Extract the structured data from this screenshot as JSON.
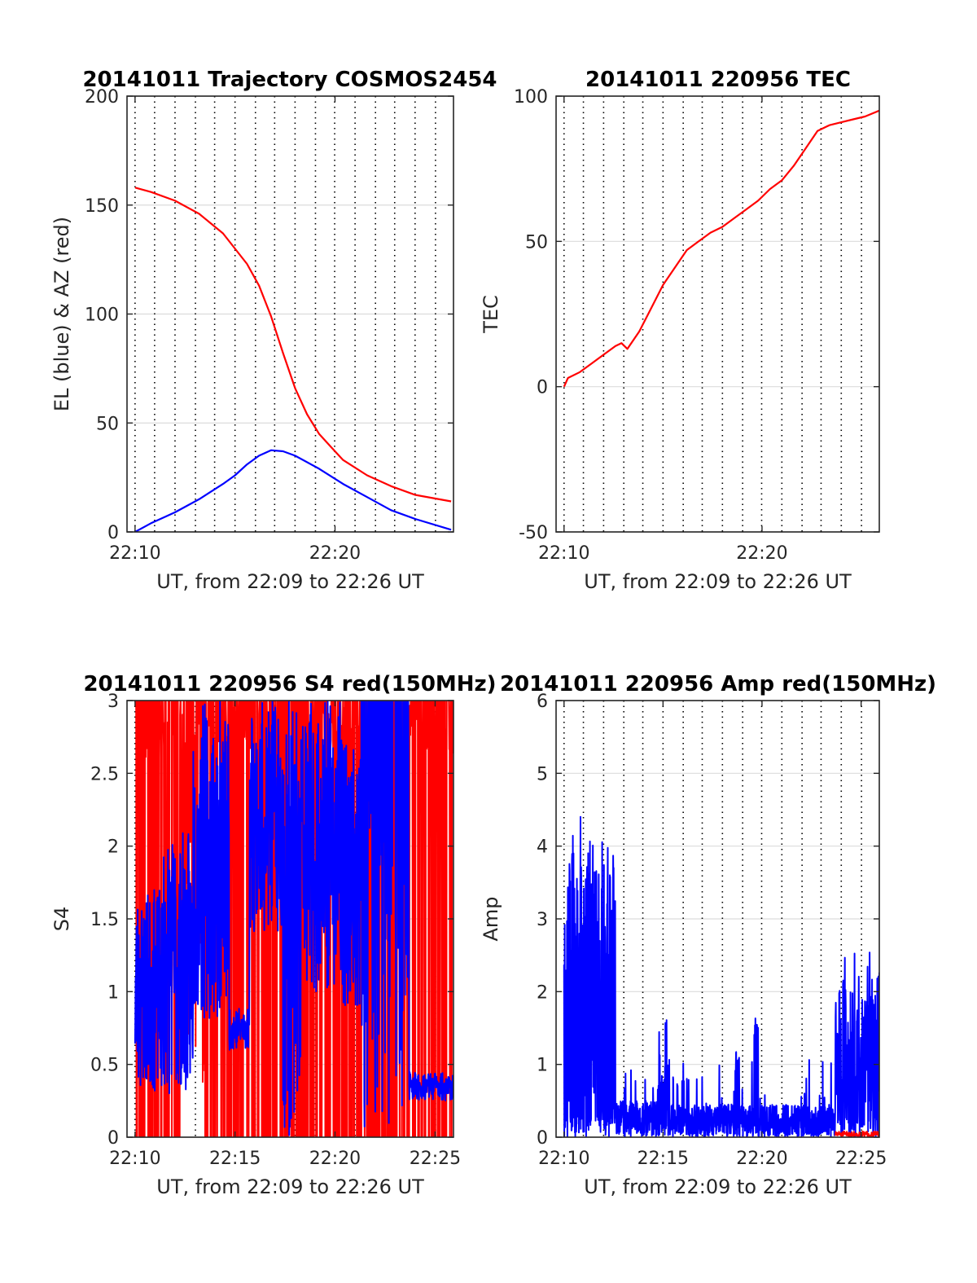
{
  "colors": {
    "red": "#ff0000",
    "blue": "#0000ff",
    "axis": "#262626",
    "grid": "#dcdcdc",
    "vline": "#000000"
  },
  "chart_data": [
    {
      "type": "line",
      "title": "20141011 Trajectory COSMOS2454",
      "xlabel": "UT, from 22:09 to 22:26 UT",
      "ylabel": "EL (blue) & AZ (red)",
      "xlim": [
        22.16,
        22.432
      ],
      "ylim": [
        0,
        200
      ],
      "xticks": [
        {
          "v": 22.1667,
          "label": "22:10"
        },
        {
          "v": 22.3333,
          "label": "22:20"
        }
      ],
      "yticks": [
        {
          "v": 0,
          "label": "0"
        },
        {
          "v": 50,
          "label": "50"
        },
        {
          "v": 100,
          "label": "100"
        },
        {
          "v": 150,
          "label": "150"
        },
        {
          "v": 200,
          "label": "200"
        }
      ],
      "dotted_lines": [
        22.1667,
        22.183,
        22.2,
        22.217,
        22.233,
        22.25,
        22.267,
        22.283,
        22.3,
        22.317,
        22.333,
        22.35,
        22.367,
        22.383,
        22.4,
        22.417
      ],
      "grid": true,
      "series": [
        {
          "color": "red",
          "x": [
            22.1667,
            22.18,
            22.2,
            22.22,
            22.24,
            22.26,
            22.27,
            22.28,
            22.29,
            22.3,
            22.31,
            22.32,
            22.33,
            22.34,
            22.36,
            22.38,
            22.4,
            22.43
          ],
          "y": [
            158,
            156,
            152,
            146,
            137,
            123,
            113,
            99,
            82,
            66,
            54,
            45,
            39,
            33,
            26,
            21,
            17,
            14
          ]
        },
        {
          "color": "blue",
          "x": [
            22.1667,
            22.18,
            22.2,
            22.22,
            22.24,
            22.25,
            22.26,
            22.27,
            22.28,
            22.29,
            22.3,
            22.32,
            22.34,
            22.36,
            22.38,
            22.4,
            22.43
          ],
          "y": [
            0,
            4,
            9,
            15,
            22,
            26,
            31,
            35,
            37.5,
            37,
            35,
            29,
            22,
            16,
            10,
            6,
            1
          ]
        }
      ]
    },
    {
      "type": "line",
      "title": "20141011 220956 TEC",
      "xlabel": "UT, from 22:09 to 22:26 UT",
      "ylabel": "TEC",
      "xlim": [
        22.16,
        22.432
      ],
      "ylim": [
        -50,
        100
      ],
      "xticks": [
        {
          "v": 22.1667,
          "label": "22:10"
        },
        {
          "v": 22.3333,
          "label": "22:20"
        }
      ],
      "yticks": [
        {
          "v": -50,
          "label": "-50"
        },
        {
          "v": 0,
          "label": "0"
        },
        {
          "v": 50,
          "label": "50"
        },
        {
          "v": 100,
          "label": "100"
        }
      ],
      "dotted_lines": [
        22.1667,
        22.183,
        22.2,
        22.217,
        22.233,
        22.25,
        22.267,
        22.283,
        22.3,
        22.317,
        22.333,
        22.35,
        22.367,
        22.383,
        22.4,
        22.417
      ],
      "grid": true,
      "series": [
        {
          "color": "red",
          "x": [
            22.1667,
            22.17,
            22.18,
            22.19,
            22.2,
            22.21,
            22.215,
            22.22,
            22.23,
            22.24,
            22.25,
            22.26,
            22.27,
            22.28,
            22.29,
            22.3,
            22.31,
            22.32,
            22.33,
            22.34,
            22.35,
            22.36,
            22.37,
            22.38,
            22.39,
            22.4,
            22.41,
            22.42,
            22.432
          ],
          "y": [
            0,
            3,
            5,
            8,
            11,
            14,
            15,
            13,
            19,
            27,
            35,
            41,
            47,
            50,
            53,
            55,
            58,
            61,
            64,
            68,
            71,
            76,
            82,
            88,
            90,
            91,
            92,
            93,
            95
          ]
        }
      ]
    },
    {
      "type": "line",
      "title": "20141011 220956 S4 red(150MHz)",
      "xlabel": "UT, from 22:09 to 22:26 UT",
      "ylabel": "S4",
      "xlim": [
        22.16,
        22.432
      ],
      "ylim": [
        0,
        3
      ],
      "xticks": [
        {
          "v": 22.1667,
          "label": "22:10"
        },
        {
          "v": 22.25,
          "label": "22:15"
        },
        {
          "v": 22.3333,
          "label": "22:20"
        },
        {
          "v": 22.4167,
          "label": "22:25"
        }
      ],
      "yticks": [
        {
          "v": 0,
          "label": "0"
        },
        {
          "v": 0.5,
          "label": "0.5"
        },
        {
          "v": 1,
          "label": "1"
        },
        {
          "v": 1.5,
          "label": "1.5"
        },
        {
          "v": 2,
          "label": "2"
        },
        {
          "v": 2.5,
          "label": "2.5"
        },
        {
          "v": 3,
          "label": "3"
        }
      ],
      "dotted_lines": [
        22.1667,
        22.183,
        22.2,
        22.217,
        22.233,
        22.25,
        22.267,
        22.283,
        22.3,
        22.317,
        22.333,
        22.35,
        22.367,
        22.383,
        22.4,
        22.417
      ],
      "grid": true,
      "series": [
        {
          "color": "red",
          "noise": "s4_red"
        },
        {
          "color": "blue",
          "noise": "s4_blue"
        }
      ]
    },
    {
      "type": "line",
      "title": "20141011 220956 Amp red(150MHz)",
      "xlabel": "UT, from 22:09 to 22:26 UT",
      "ylabel": "Amp",
      "xlim": [
        22.16,
        22.432
      ],
      "ylim": [
        0,
        6
      ],
      "xticks": [
        {
          "v": 22.1667,
          "label": "22:10"
        },
        {
          "v": 22.25,
          "label": "22:15"
        },
        {
          "v": 22.3333,
          "label": "22:20"
        },
        {
          "v": 22.4167,
          "label": "22:25"
        }
      ],
      "yticks": [
        {
          "v": 0,
          "label": "0"
        },
        {
          "v": 1,
          "label": "1"
        },
        {
          "v": 2,
          "label": "2"
        },
        {
          "v": 3,
          "label": "3"
        },
        {
          "v": 4,
          "label": "4"
        },
        {
          "v": 5,
          "label": "5"
        },
        {
          "v": 6,
          "label": "6"
        }
      ],
      "dotted_lines": [
        22.1667,
        22.183,
        22.2,
        22.217,
        22.233,
        22.25,
        22.267,
        22.283,
        22.3,
        22.317,
        22.333,
        22.35,
        22.367,
        22.383,
        22.4,
        22.417
      ],
      "grid": true,
      "series": [
        {
          "color": "blue",
          "noise": "amp_blue"
        },
        {
          "color": "red",
          "noise": "amp_red"
        }
      ]
    }
  ]
}
